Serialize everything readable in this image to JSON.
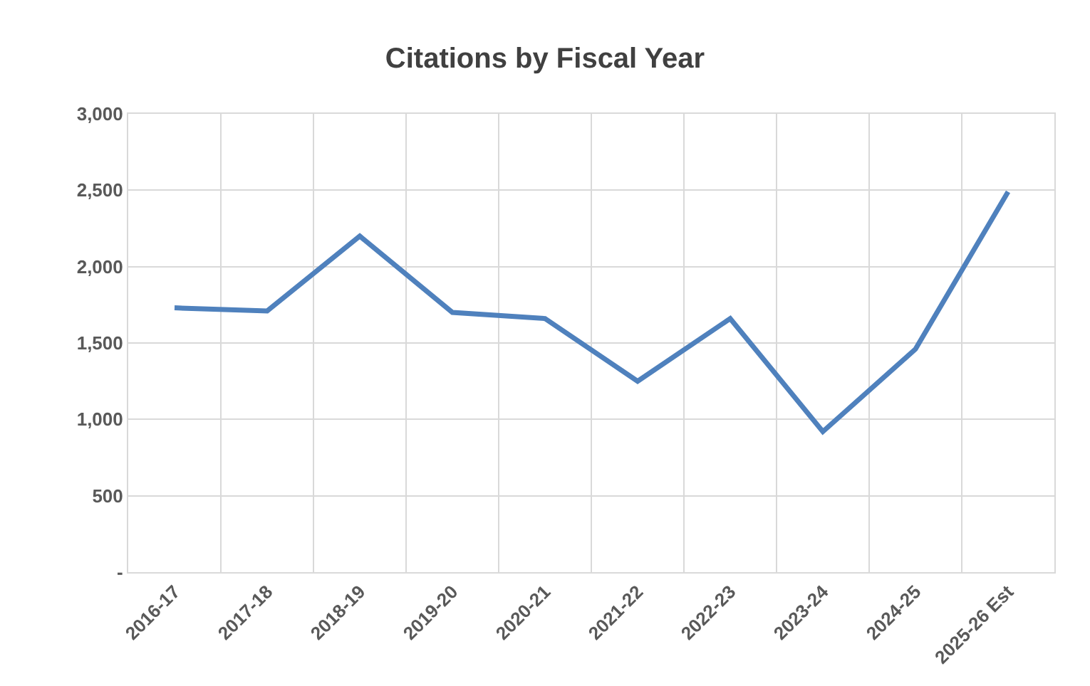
{
  "chart_data": {
    "type": "line",
    "title": "Citations by Fiscal Year",
    "categories": [
      "2016-17",
      "2017-18",
      "2018-19",
      "2019-20",
      "2020-21",
      "2021-22",
      "2022-23",
      "2023-24",
      "2024-25",
      "2025-26 Est"
    ],
    "series": [
      {
        "color": "#4f81bd",
        "values": [
          1730,
          1710,
          2200,
          1700,
          1660,
          1250,
          1660,
          920,
          1460,
          2490
        ]
      }
    ],
    "ylim": [
      0,
      3000
    ],
    "yticks": [
      {
        "value": 0,
        "label": "-"
      },
      500,
      {
        "value": 1000,
        "label": "1,000"
      },
      {
        "value": 1500,
        "label": "1,500"
      },
      {
        "value": 2000,
        "label": "2,000"
      },
      {
        "value": 2500,
        "label": "2,500"
      },
      {
        "value": 3000,
        "label": "3,000"
      }
    ],
    "grid": true,
    "marker": "none",
    "line_style": "solid"
  }
}
